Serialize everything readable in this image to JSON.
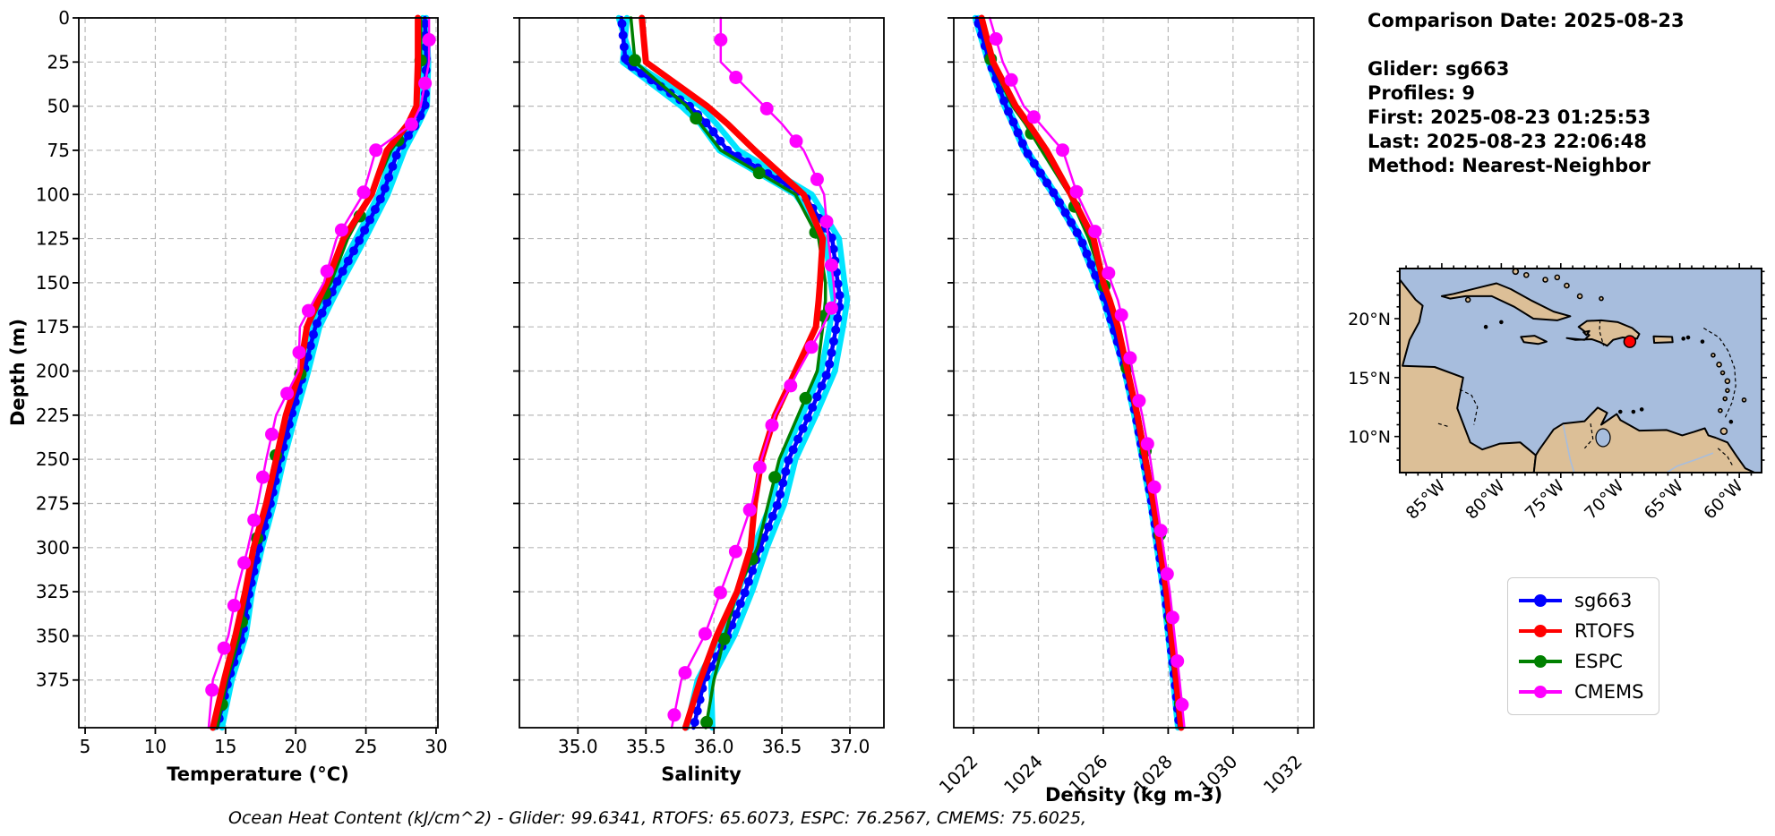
{
  "info": {
    "lines": [
      "Comparison Date: 2025-08-23",
      "Glider: sg663",
      "Profiles: 9",
      "First: 2025-08-23 01:25:53",
      "Last: 2025-08-23 22:06:48",
      "Method: Nearest-Neighbor"
    ]
  },
  "annotation": {
    "text": "Ocean Heat Content (kJ/cm^2) - Glider: 99.6341,  RTOFS: 65.6073,  ESPC: 76.2567,  CMEMS: 75.6025,"
  },
  "legend": {
    "items": [
      {
        "label": "sg663",
        "color": "#0000FF"
      },
      {
        "label": "RTOFS",
        "color": "#FF0000"
      },
      {
        "label": "ESPC",
        "color": "#008000"
      },
      {
        "label": "CMEMS",
        "color": "#FF00FF"
      }
    ]
  },
  "map": {
    "lat_labels": [
      "20°N",
      "15°N",
      "10°N"
    ],
    "lat_values": [
      20,
      15,
      10
    ],
    "lon_labels": [
      "85°W",
      "80°W",
      "75°W",
      "70°W",
      "65°W",
      "60°W"
    ],
    "lon_values": [
      -85,
      -80,
      -75,
      -70,
      -65,
      -60
    ],
    "land_color": "#DCBF97",
    "water_color": "#A7BDDD",
    "coast_color": "#000000",
    "marker": {
      "name": "glider-location",
      "color": "#FF0000",
      "lon": -69.2,
      "lat": 18.05
    }
  },
  "chart_data": {
    "type": "line",
    "ylabel": "Depth (m)",
    "ylim": [
      0,
      402
    ],
    "yticks": [
      0,
      25,
      50,
      75,
      100,
      125,
      150,
      175,
      200,
      225,
      250,
      275,
      300,
      325,
      350,
      375
    ],
    "depths": [
      0,
      25,
      50,
      60,
      75,
      100,
      125,
      150,
      160,
      175,
      200,
      225,
      250,
      275,
      300,
      325,
      350,
      375,
      402
    ],
    "grid": true,
    "panels": [
      {
        "id": "temperature",
        "xlabel": "Temperature (°C)",
        "xlim": [
          4.55,
          30.13
        ],
        "xticks": [
          5,
          10,
          15,
          20,
          25,
          30
        ],
        "xtick_labels": [
          "5",
          "10",
          "15",
          "20",
          "25",
          "30"
        ]
      },
      {
        "id": "salinity",
        "xlabel": "Salinity",
        "xlim": [
          34.57,
          37.25
        ],
        "xticks": [
          35.0,
          35.5,
          36.0,
          36.5,
          37.0
        ],
        "xtick_labels": [
          "35.0",
          "35.5",
          "36.0",
          "36.5",
          "37.0"
        ]
      },
      {
        "id": "density",
        "xlabel": "Density (kg m-3)",
        "xlim": [
          1021.39,
          1032.49
        ],
        "xticks": [
          1022,
          1024,
          1026,
          1028,
          1030,
          1032
        ],
        "xtick_labels": [
          "1022",
          "1024",
          "1026",
          "1028",
          "1030",
          "1032"
        ]
      }
    ],
    "series": [
      {
        "name": "glider-raw-1",
        "in_legend": false,
        "color": "#00E5FF",
        "values": {
          "temperature": [
            29.3,
            29.45,
            29.35,
            28.75,
            27.75,
            26.55,
            24.95,
            23.25,
            22.6,
            21.7,
            20.9,
            20.0,
            19.15,
            18.45,
            17.6,
            16.9,
            16.45,
            15.45,
            14.75
          ],
          "salinity": [
            35.3,
            35.4,
            35.9,
            36.02,
            36.18,
            36.72,
            36.92,
            36.96,
            36.98,
            36.95,
            36.89,
            36.75,
            36.6,
            36.52,
            36.39,
            36.28,
            36.15,
            35.98,
            35.99
          ],
          "density": [
            1022.05,
            1022.45,
            1022.95,
            1023.2,
            1023.55,
            1024.45,
            1025.25,
            1025.8,
            1026.0,
            1026.25,
            1026.65,
            1026.95,
            1027.2,
            1027.45,
            1027.65,
            1027.85,
            1028.0,
            1028.15,
            1028.3
          ]
        }
      },
      {
        "name": "glider-raw-2",
        "in_legend": false,
        "color": "#00E5FF",
        "values": {
          "temperature": [
            29.05,
            29.15,
            29.0,
            28.3,
            27.0,
            25.9,
            24.3,
            22.6,
            22.0,
            21.1,
            20.35,
            19.5,
            18.7,
            18.0,
            17.2,
            16.5,
            16.0,
            15.0,
            14.2
          ],
          "salinity": [
            35.36,
            35.33,
            35.76,
            35.9,
            36.04,
            36.6,
            36.82,
            36.86,
            36.88,
            36.85,
            36.79,
            36.65,
            36.5,
            36.42,
            36.29,
            36.18,
            36.05,
            35.88,
            35.8
          ],
          "density": [
            1022.15,
            1022.55,
            1023.05,
            1023.3,
            1023.65,
            1024.55,
            1025.35,
            1025.9,
            1026.1,
            1026.35,
            1026.75,
            1027.05,
            1027.3,
            1027.55,
            1027.75,
            1027.95,
            1028.1,
            1028.25,
            1028.4
          ]
        }
      },
      {
        "name": "sg663",
        "in_legend": true,
        "color": "#0000FF",
        "values": {
          "temperature": [
            29.2,
            29.3,
            29.2,
            28.6,
            27.3,
            26.2,
            24.6,
            22.9,
            22.3,
            21.4,
            20.6,
            19.7,
            18.9,
            18.2,
            17.4,
            16.7,
            16.2,
            15.2,
            14.4
          ],
          "salinity": [
            35.32,
            35.35,
            35.82,
            35.95,
            36.1,
            36.66,
            36.87,
            36.91,
            36.93,
            36.9,
            36.84,
            36.7,
            36.55,
            36.47,
            36.34,
            36.23,
            36.1,
            35.93,
            35.85
          ],
          "density": [
            1022.1,
            1022.5,
            1023.0,
            1023.25,
            1023.6,
            1024.5,
            1025.3,
            1025.85,
            1026.05,
            1026.3,
            1026.7,
            1027.0,
            1027.25,
            1027.5,
            1027.7,
            1027.9,
            1028.05,
            1028.2,
            1028.35
          ]
        }
      },
      {
        "name": "ESPC",
        "in_legend": true,
        "color": "#008000",
        "values": {
          "temperature": [
            28.9,
            28.9,
            28.6,
            28.1,
            26.8,
            25.4,
            23.7,
            22.5,
            21.8,
            20.9,
            20.4,
            19.4,
            18.5,
            17.8,
            17.1,
            16.5,
            16.0,
            15.1,
            14.4
          ],
          "salinity": [
            35.39,
            35.42,
            35.8,
            35.9,
            36.05,
            36.6,
            36.77,
            36.82,
            36.82,
            36.8,
            36.76,
            36.62,
            36.48,
            36.4,
            36.32,
            36.17,
            36.08,
            36.0,
            35.94
          ],
          "density": [
            1022.2,
            1022.55,
            1023.2,
            1023.6,
            1024.1,
            1024.95,
            1025.55,
            1026.0,
            1026.18,
            1026.4,
            1026.75,
            1027.1,
            1027.35,
            1027.6,
            1027.8,
            1028.0,
            1028.15,
            1028.3,
            1028.45
          ]
        }
      },
      {
        "name": "RTOFS",
        "in_legend": true,
        "color": "#FF0000",
        "values": {
          "temperature": [
            28.7,
            28.7,
            28.6,
            28.0,
            26.5,
            25.4,
            23.4,
            22.2,
            21.6,
            20.8,
            20.3,
            19.3,
            18.6,
            17.9,
            17.0,
            16.4,
            15.7,
            14.9,
            14.1
          ],
          "salinity": [
            35.47,
            35.5,
            35.95,
            36.1,
            36.3,
            36.66,
            36.8,
            36.78,
            36.77,
            36.75,
            36.6,
            36.45,
            36.35,
            36.3,
            36.27,
            36.17,
            36.02,
            35.9,
            35.79
          ],
          "density": [
            1022.25,
            1022.6,
            1023.3,
            1023.7,
            1024.25,
            1025.0,
            1025.7,
            1026.0,
            1026.2,
            1026.45,
            1026.75,
            1027.05,
            1027.3,
            1027.55,
            1027.75,
            1027.95,
            1028.1,
            1028.25,
            1028.4
          ]
        }
      },
      {
        "name": "CMEMS",
        "in_legend": true,
        "color": "#FF00FF",
        "values": {
          "temperature": [
            29.5,
            29.5,
            28.9,
            28.3,
            25.7,
            24.8,
            22.9,
            22.0,
            21.3,
            20.3,
            20.2,
            18.6,
            17.9,
            17.3,
            16.6,
            15.8,
            15.2,
            14.1,
            13.8
          ],
          "salinity": [
            36.05,
            36.05,
            36.37,
            36.5,
            36.66,
            36.81,
            36.84,
            36.88,
            36.89,
            36.8,
            36.62,
            36.45,
            36.35,
            36.28,
            36.17,
            36.05,
            35.93,
            35.76,
            35.69
          ],
          "density": [
            1022.5,
            1022.9,
            1023.55,
            1024.05,
            1024.75,
            1025.2,
            1025.85,
            1026.25,
            1026.45,
            1026.65,
            1026.9,
            1027.2,
            1027.45,
            1027.65,
            1027.85,
            1028.05,
            1028.2,
            1028.35,
            1028.5
          ]
        }
      }
    ]
  }
}
